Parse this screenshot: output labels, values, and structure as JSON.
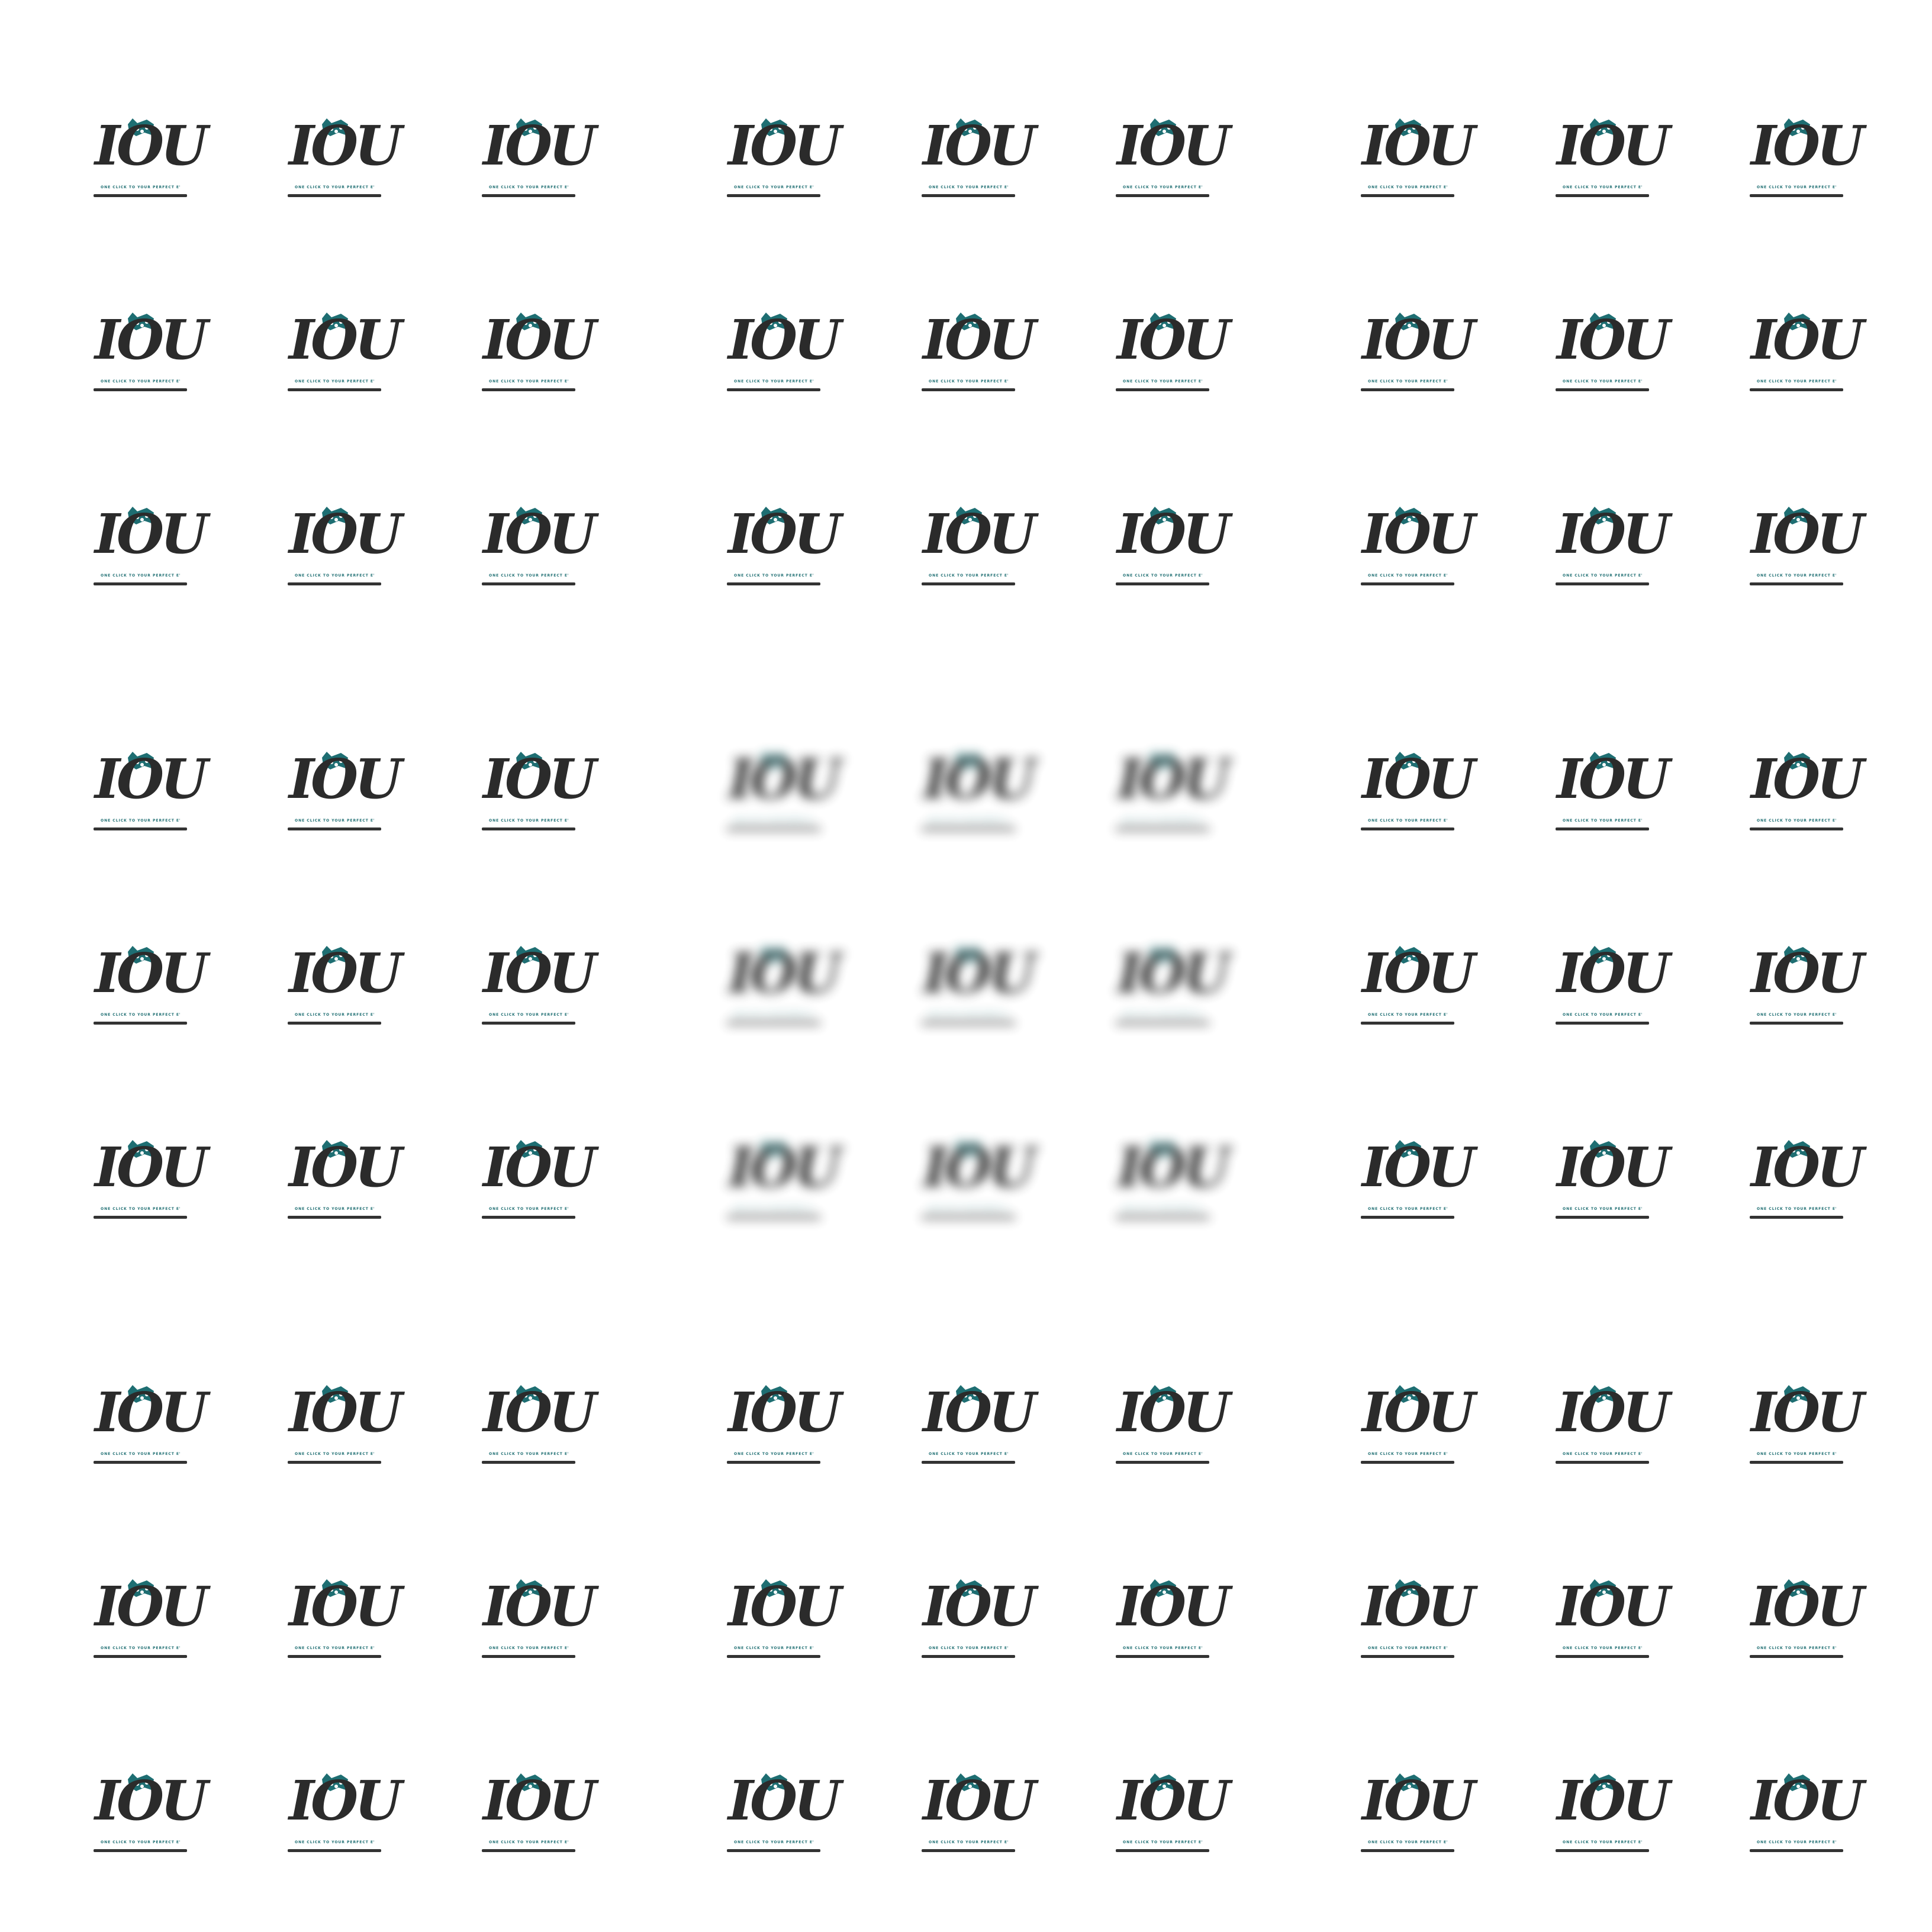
{
  "logo": {
    "wordmark": "IOU",
    "tagline": "ONE CLICK TO YOUR PERFECT EVENT",
    "ink_color": "#2b2b2b",
    "accent_color": "#1e6e72",
    "rule_color": "#333333"
  },
  "pattern": {
    "blocks": 3,
    "tiles_per_block_row": 3,
    "blurred_block": "center"
  }
}
